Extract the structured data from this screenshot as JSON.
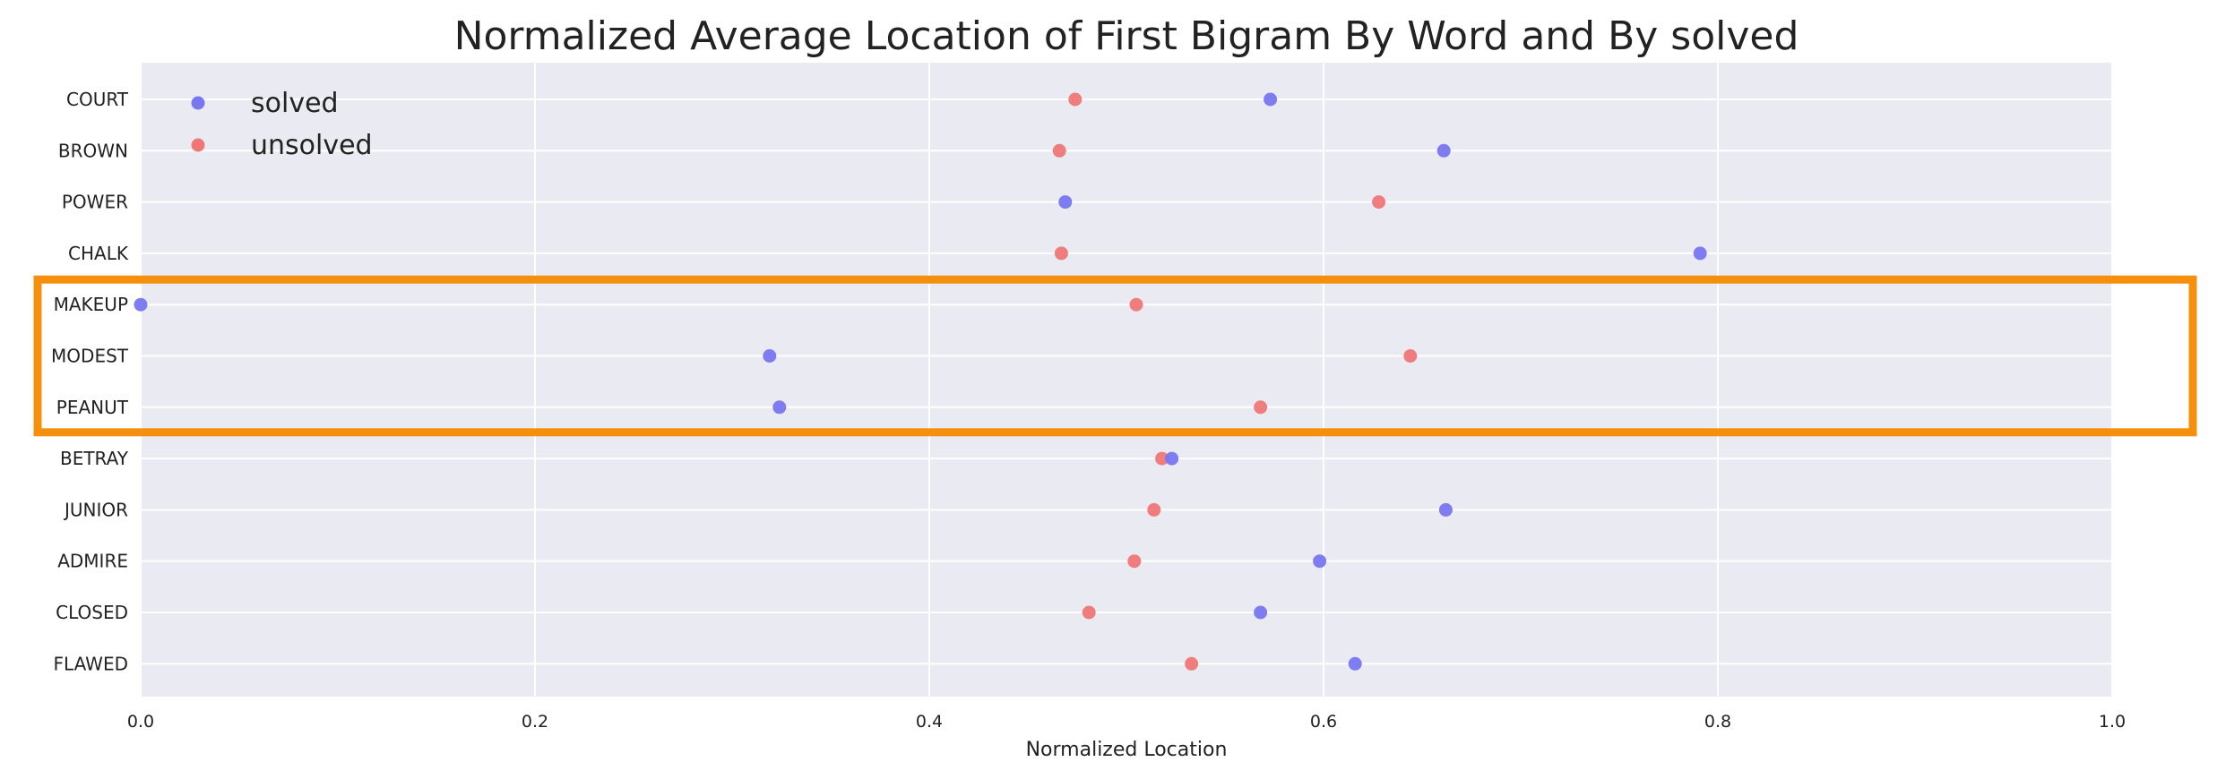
{
  "chart_data": {
    "type": "scatter",
    "title": "Normalized Average Location of First Bigram By Word and By solved",
    "xlabel": "Normalized Location",
    "ylabel": "",
    "xlim": [
      0.0,
      1.0
    ],
    "x_ticks": [
      "0.0",
      "0.2",
      "0.4",
      "0.6",
      "0.8",
      "1.0"
    ],
    "categories": [
      "COURT",
      "BROWN",
      "POWER",
      "CHALK",
      "MAKEUP",
      "MODEST",
      "PEANUT",
      "BETRAY",
      "JUNIOR",
      "ADMIRE",
      "CLOSED",
      "FLAWED"
    ],
    "series": [
      {
        "name": "solved",
        "color": "#7777f0",
        "values": [
          0.573,
          0.661,
          0.469,
          0.791,
          0.0,
          0.319,
          0.324,
          0.523,
          0.662,
          0.598,
          0.568,
          0.616
        ]
      },
      {
        "name": "unsolved",
        "color": "#f07777",
        "values": [
          0.474,
          0.466,
          0.628,
          0.467,
          0.505,
          0.644,
          0.568,
          0.518,
          0.514,
          0.504,
          0.481,
          0.533
        ]
      }
    ],
    "grid": true,
    "legend_position": "top-left",
    "background_color": "#eaeaf2",
    "highlight": {
      "categories": [
        "MAKEUP",
        "MODEST",
        "PEANUT"
      ],
      "color": "#f5900f"
    }
  }
}
